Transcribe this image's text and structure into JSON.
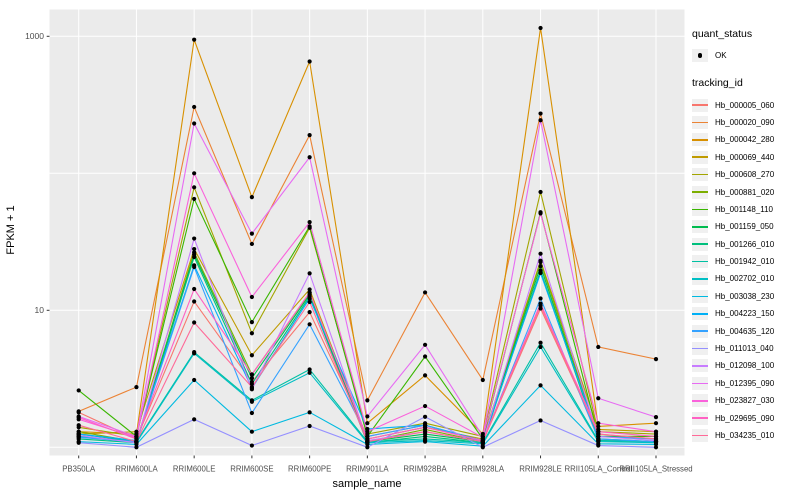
{
  "chart_data": {
    "type": "line",
    "title": "",
    "xlabel": "sample_name",
    "ylabel": "FPKM + 1",
    "y_scale": "log10",
    "ylim": [
      0.9,
      1300
    ],
    "grid": "major-white-on-gray",
    "legend_position": "right",
    "panel_color": "#EBEBEB",
    "grid_color": "#FFFFFF",
    "tick_label_color": "#4D4D4D",
    "marker_color": "#000000",
    "gridline_values": [
      1,
      10,
      100,
      1000
    ],
    "y_tick_labels": [
      {
        "value": 1000,
        "label": "1000"
      },
      {
        "value": 10,
        "label": "10"
      }
    ],
    "categories": [
      "PB350LA",
      "RRIM600LA",
      "RRIM600LE",
      "RRIM600SE",
      "RRIM600PE",
      "RRIM901LA",
      "RRIM928BA",
      "RRIM928LA",
      "RRIM928LE",
      "RRII105LA_Control",
      "RRII105LA_Stressed"
    ],
    "series": [
      {
        "name": "Hb_000005_060",
        "color": "#F8766D",
        "values": [
          1.8,
          1.15,
          11.6,
          3.0,
          9.7,
          1.2,
          1.45,
          1.1,
          10.3,
          1.25,
          1.15
        ]
      },
      {
        "name": "Hb_000020_090",
        "color": "#EB8335",
        "values": [
          1.83,
          2.75,
          305,
          30.5,
          190,
          2.2,
          13.5,
          3.1,
          273,
          5.4,
          4.4
        ]
      },
      {
        "name": "Hb_000042_280",
        "color": "#D89000",
        "values": [
          1.3,
          1.25,
          945,
          67,
          655,
          1.5,
          3.35,
          1.25,
          1150,
          1.42,
          1.5
        ]
      },
      {
        "name": "Hb_000069_440",
        "color": "#C09B00",
        "values": [
          1.25,
          1.3,
          28,
          4.7,
          14.2,
          1.15,
          1.4,
          1.15,
          23,
          1.35,
          1.3
        ]
      },
      {
        "name": "Hb_000608_270",
        "color": "#A3A500",
        "values": [
          1.4,
          1.2,
          79,
          6.8,
          40,
          1.25,
          1.5,
          1.2,
          73,
          1.3,
          1.25
        ]
      },
      {
        "name": "Hb_000881_020",
        "color": "#7CAE00",
        "values": [
          1.3,
          1.1,
          26.5,
          3.4,
          13.4,
          1.1,
          1.35,
          1.1,
          22.5,
          1.2,
          1.2
        ]
      },
      {
        "name": "Hb_001148_110",
        "color": "#39B600",
        "values": [
          2.6,
          1.2,
          65,
          8.2,
          41,
          1.2,
          4.6,
          1.15,
          52,
          1.2,
          1.2
        ]
      },
      {
        "name": "Hb_001159_050",
        "color": "#00BB4E",
        "values": [
          1.2,
          1.1,
          25.5,
          3.2,
          13,
          1.1,
          1.25,
          1.1,
          21,
          1.15,
          1.1
        ]
      },
      {
        "name": "Hb_001266_010",
        "color": "#00BF7D",
        "values": [
          1.15,
          1.08,
          24.5,
          2.9,
          12.6,
          1.08,
          1.2,
          1.08,
          19.5,
          1.12,
          1.1
        ]
      },
      {
        "name": "Hb_001942_010",
        "color": "#00C1A3",
        "values": [
          1.25,
          1.1,
          4.95,
          2.2,
          3.7,
          1.1,
          1.15,
          1.08,
          5.8,
          1.12,
          1.1
        ]
      },
      {
        "name": "Hb_002702_010",
        "color": "#00BFC4",
        "values": [
          1.2,
          1.08,
          4.85,
          2.15,
          3.5,
          1.08,
          1.12,
          1.06,
          5.4,
          1.1,
          1.08
        ]
      },
      {
        "name": "Hb_003038_230",
        "color": "#00BAE0",
        "values": [
          1.1,
          1.05,
          3.1,
          1.3,
          1.8,
          1.05,
          1.1,
          1.02,
          2.83,
          1.06,
          1.05
        ]
      },
      {
        "name": "Hb_004223_150",
        "color": "#00B0F6",
        "values": [
          1.25,
          1.12,
          21.3,
          2.7,
          12.2,
          1.36,
          1.45,
          1.12,
          18.7,
          1.2,
          1.15
        ]
      },
      {
        "name": "Hb_004635_120",
        "color": "#35A2FF",
        "values": [
          1.18,
          1.1,
          20.7,
          1.78,
          7.9,
          1.2,
          1.45,
          1.1,
          12.2,
          1.15,
          1.1
        ]
      },
      {
        "name": "Hb_011013_040",
        "color": "#9590FF",
        "values": [
          1.08,
          1.0,
          1.6,
          1.03,
          1.43,
          1.0,
          1.67,
          1.0,
          1.57,
          1.03,
          1.0
        ]
      },
      {
        "name": "Hb_012098_100",
        "color": "#C77CFF",
        "values": [
          1.22,
          1.08,
          33.4,
          2.65,
          18.6,
          1.12,
          1.3,
          1.1,
          25.9,
          1.2,
          1.12
        ]
      },
      {
        "name": "Hb_012395_090",
        "color": "#E76BF3",
        "values": [
          1.68,
          1.2,
          231,
          36.3,
          131,
          1.68,
          5.6,
          1.2,
          244,
          2.28,
          1.66
        ]
      },
      {
        "name": "Hb_023827_030",
        "color": "#FA62DB",
        "values": [
          1.6,
          1.18,
          100,
          12.5,
          44,
          1.3,
          2.0,
          1.18,
          51,
          1.5,
          1.3
        ]
      },
      {
        "name": "Hb_029695_090",
        "color": "#FF61C3",
        "values": [
          1.65,
          1.15,
          14.3,
          3.4,
          13.5,
          1.15,
          1.4,
          1.12,
          11.2,
          1.3,
          1.2
        ]
      },
      {
        "name": "Hb_034235_010",
        "color": "#FF6A98",
        "values": [
          1.45,
          1.1,
          8.15,
          2.75,
          11.5,
          1.1,
          1.3,
          1.1,
          10.8,
          1.25,
          1.15
        ]
      }
    ],
    "legend": {
      "quant_status_title": "quant_status",
      "quant_status_items": [
        {
          "label": "OK"
        }
      ],
      "tracking_id_title": "tracking_id"
    }
  }
}
